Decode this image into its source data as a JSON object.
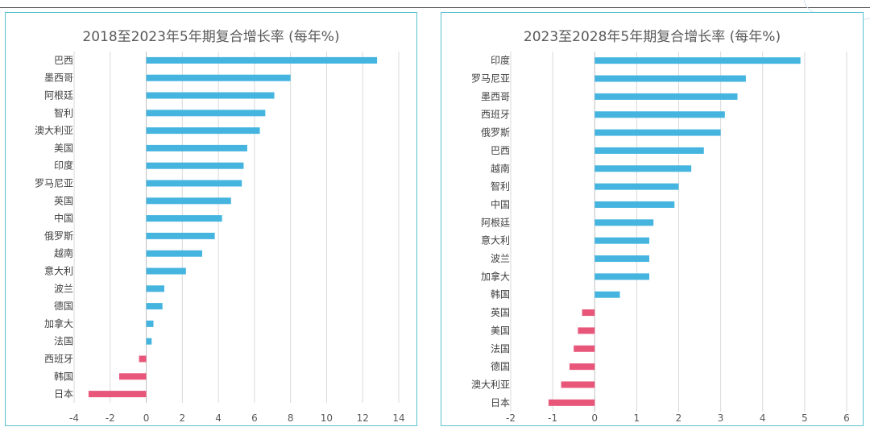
{
  "colors": {
    "positive": "#45b5e0",
    "negative": "#e8567a",
    "grid": "#d9d9d9",
    "text": "#595959",
    "border": "#5bc2d0"
  },
  "chart_data": [
    {
      "type": "bar",
      "orientation": "horizontal",
      "title": "2018至2023年5年期复合增长率 (每年%)",
      "categories": [
        "巴西",
        "墨西哥",
        "阿根廷",
        "智利",
        "澳大利亚",
        "美国",
        "印度",
        "罗马尼亚",
        "英国",
        "中国",
        "俄罗斯",
        "越南",
        "意大利",
        "波兰",
        "德国",
        "加拿大",
        "法国",
        "西班牙",
        "韩国",
        "日本"
      ],
      "values": [
        12.8,
        8.0,
        7.1,
        6.6,
        6.3,
        5.6,
        5.4,
        5.3,
        4.7,
        4.2,
        3.8,
        3.1,
        2.2,
        1.0,
        0.9,
        0.4,
        0.3,
        -0.4,
        -1.5,
        -3.2
      ],
      "xlim": [
        -4,
        14
      ],
      "xticks": [
        -4,
        -2,
        0,
        2,
        4,
        6,
        8,
        10,
        12,
        14
      ],
      "grid": true
    },
    {
      "type": "bar",
      "orientation": "horizontal",
      "title": "2023至2028年5年期复合增长率 (每年%)",
      "categories": [
        "印度",
        "罗马尼亚",
        "墨西哥",
        "西班牙",
        "俄罗斯",
        "巴西",
        "越南",
        "智利",
        "中国",
        "阿根廷",
        "意大利",
        "波兰",
        "加拿大",
        "韩国",
        "英国",
        "美国",
        "法国",
        "德国",
        "澳大利亚",
        "日本"
      ],
      "values": [
        4.9,
        3.6,
        3.4,
        3.1,
        3.0,
        2.6,
        2.3,
        2.0,
        1.9,
        1.4,
        1.3,
        1.3,
        1.3,
        0.6,
        -0.3,
        -0.4,
        -0.5,
        -0.6,
        -0.8,
        -1.1
      ],
      "xlim": [
        -2,
        6
      ],
      "xticks": [
        -2,
        -1,
        0,
        1,
        2,
        3,
        4,
        5,
        6
      ],
      "grid": true
    }
  ]
}
